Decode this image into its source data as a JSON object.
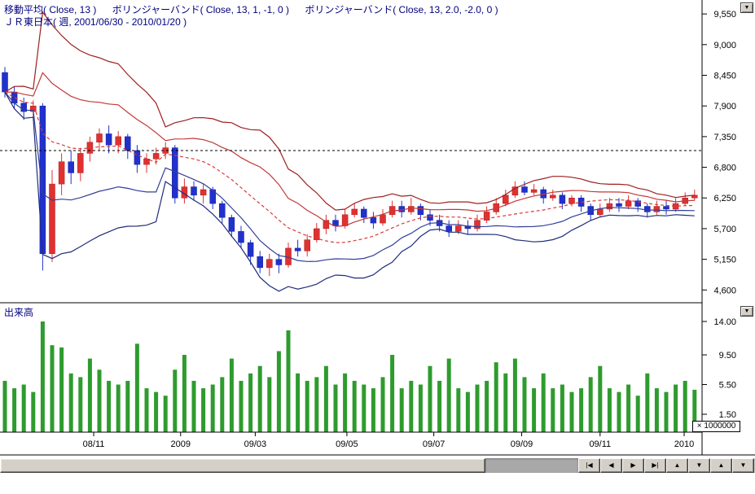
{
  "header": {
    "line1": [
      "移動平均( Close, 13 )",
      "ボリンジャーバンド( Close, 13, 1, -1, 0 )",
      "ボリンジャーバンド( Close, 13, 2.0, -2.0, 0 )"
    ],
    "line2": "ＪＲ東日本( 週, 2001/06/30 - 2010/01/20 )",
    "text_color": "#000080"
  },
  "volume_pane": {
    "label": "出来高",
    "multiplier": "× 1000000"
  },
  "controls": {
    "dropdown_glyph": "▼"
  },
  "scrollbar": {
    "buttons": [
      {
        "name": "jump-start",
        "glyph": "|◀"
      },
      {
        "name": "step-left",
        "glyph": "◀"
      },
      {
        "name": "step-right",
        "glyph": "▶"
      },
      {
        "name": "jump-end",
        "glyph": "▶|"
      },
      {
        "name": "zoom-in",
        "glyph": "▲"
      },
      {
        "name": "zoom-out",
        "glyph": "▼"
      },
      {
        "name": "pane-up",
        "glyph": "▲"
      },
      {
        "name": "pane-down",
        "glyph": "▼"
      }
    ]
  },
  "chart_data": {
    "type": "candlestick",
    "title": "ＪＲ東日本",
    "timeframe": "週",
    "date_range": "2001/06/30 - 2010/01/20",
    "indicators": [
      "移動平均( Close, 13 )",
      "ボリンジャーバンド( Close, 13, 1, -1, 0 )",
      "ボリンジャーバンド( Close, 13, 2.0, -2.0, 0 )"
    ],
    "reference_line": 7100,
    "price_axis": {
      "max": 9800,
      "min": 4371,
      "ticks": [
        9550,
        9000,
        8450,
        7900,
        7350,
        6800,
        6250,
        5700,
        5150,
        4600
      ],
      "tick_labels": [
        "9,550",
        "9,000",
        "8,450",
        "7,900",
        "7,350",
        "6,800",
        "6,250",
        "5,700",
        "5,150",
        "4,600"
      ]
    },
    "volume_axis": {
      "ticks": [
        14.0,
        9.5,
        5.5,
        1.5
      ],
      "tick_labels": [
        "14.00",
        "9.50",
        "5.50",
        "1.50"
      ],
      "multiplier": 1000000
    },
    "x_labels": [
      {
        "text": "08/11",
        "i": 9.4
      },
      {
        "text": "2009",
        "i": 18.6
      },
      {
        "text": "09/03",
        "i": 26.5
      },
      {
        "text": "09/05",
        "i": 36.2
      },
      {
        "text": "09/07",
        "i": 45.4
      },
      {
        "text": "09/09",
        "i": 54.7
      },
      {
        "text": "09/11",
        "i": 63.0
      },
      {
        "text": "2010",
        "i": 71.9
      }
    ],
    "series_colors": {
      "up": "#e03131",
      "up_border": "#a81f1f",
      "down": "#2131cd",
      "down_border": "#151f96",
      "volume": "#2e9b2e",
      "ma": "#d83a3a",
      "band1_upper": "#c43838",
      "band2_upper": "#9e1f1f",
      "band1_lower": "#32409a",
      "band2_lower": "#1f2d7a",
      "reference": "#000000",
      "axis": "#000000"
    },
    "candles": {
      "columns": [
        "open",
        "high",
        "low",
        "close",
        "volume_millions"
      ],
      "rows": [
        [
          8500,
          8600,
          8050,
          8150,
          6.0
        ],
        [
          8150,
          8250,
          7850,
          7950,
          5.0
        ],
        [
          7950,
          8050,
          7650,
          7800,
          5.5
        ],
        [
          7800,
          8000,
          7700,
          7900,
          4.5
        ],
        [
          7900,
          7950,
          4950,
          5250,
          14.0
        ],
        [
          5250,
          6750,
          5100,
          6500,
          10.8
        ],
        [
          6500,
          7050,
          6300,
          6900,
          10.5
        ],
        [
          6900,
          7100,
          6500,
          6700,
          7.0
        ],
        [
          6700,
          7150,
          6550,
          7050,
          6.5
        ],
        [
          7050,
          7350,
          6900,
          7250,
          9.0
        ],
        [
          7250,
          7500,
          7100,
          7400,
          7.5
        ],
        [
          7400,
          7550,
          7050,
          7200,
          6.0
        ],
        [
          7200,
          7450,
          7050,
          7350,
          5.5
        ],
        [
          7350,
          7400,
          6950,
          7100,
          6.0
        ],
        [
          7100,
          7200,
          6700,
          6850,
          11.0
        ],
        [
          6850,
          7050,
          6700,
          6950,
          5.0
        ],
        [
          6950,
          7150,
          6850,
          7050,
          4.5
        ],
        [
          7050,
          7250,
          6950,
          7150,
          4.0
        ],
        [
          7150,
          7200,
          6150,
          6250,
          7.5
        ],
        [
          6250,
          6600,
          6150,
          6450,
          9.5
        ],
        [
          6450,
          6550,
          6200,
          6300,
          6.0
        ],
        [
          6300,
          6500,
          6150,
          6400,
          5.0
        ],
        [
          6400,
          6450,
          6050,
          6150,
          5.5
        ],
        [
          6150,
          6200,
          5800,
          5900,
          6.5
        ],
        [
          5900,
          5950,
          5550,
          5650,
          9.0
        ],
        [
          5650,
          5750,
          5350,
          5450,
          6.0
        ],
        [
          5450,
          5500,
          5050,
          5200,
          7.0
        ],
        [
          5200,
          5300,
          4900,
          5000,
          8.0
        ],
        [
          5000,
          5250,
          4850,
          5150,
          6.5
        ],
        [
          5150,
          5250,
          4900,
          5050,
          10.0
        ],
        [
          5050,
          5450,
          5000,
          5350,
          12.8
        ],
        [
          5350,
          5500,
          5200,
          5300,
          7.0
        ],
        [
          5300,
          5600,
          5200,
          5500,
          6.0
        ],
        [
          5500,
          5800,
          5450,
          5700,
          6.5
        ],
        [
          5700,
          5950,
          5600,
          5850,
          8.0
        ],
        [
          5850,
          5950,
          5650,
          5750,
          5.5
        ],
        [
          5750,
          6050,
          5700,
          5950,
          7.0
        ],
        [
          5950,
          6150,
          5900,
          6050,
          6.0
        ],
        [
          6050,
          6100,
          5800,
          5900,
          5.5
        ],
        [
          5900,
          6000,
          5700,
          5800,
          5.0
        ],
        [
          5800,
          6050,
          5750,
          5950,
          6.5
        ],
        [
          5950,
          6200,
          5900,
          6100,
          9.5
        ],
        [
          6100,
          6200,
          5900,
          6000,
          5.0
        ],
        [
          6000,
          6250,
          5950,
          6100,
          6.0
        ],
        [
          6100,
          6150,
          5850,
          5950,
          5.5
        ],
        [
          5950,
          6050,
          5750,
          5850,
          8.0
        ],
        [
          5850,
          5950,
          5650,
          5750,
          6.0
        ],
        [
          5750,
          5850,
          5550,
          5650,
          9.0
        ],
        [
          5650,
          5850,
          5600,
          5750,
          5.0
        ],
        [
          5750,
          5850,
          5600,
          5700,
          4.5
        ],
        [
          5700,
          5950,
          5650,
          5850,
          5.5
        ],
        [
          5850,
          6100,
          5800,
          6000,
          6.0
        ],
        [
          6000,
          6250,
          5950,
          6150,
          8.5
        ],
        [
          6150,
          6400,
          6100,
          6300,
          7.0
        ],
        [
          6300,
          6550,
          6250,
          6450,
          9.0
        ],
        [
          6450,
          6550,
          6300,
          6350,
          6.5
        ],
        [
          6350,
          6500,
          6300,
          6400,
          5.0
        ],
        [
          6400,
          6450,
          6150,
          6250,
          7.0
        ],
        [
          6250,
          6400,
          6200,
          6300,
          5.0
        ],
        [
          6300,
          6350,
          6050,
          6150,
          5.5
        ],
        [
          6150,
          6300,
          6100,
          6250,
          4.5
        ],
        [
          6250,
          6300,
          6000,
          6100,
          5.0
        ],
        [
          6100,
          6150,
          5850,
          5950,
          6.5
        ],
        [
          5950,
          6150,
          5900,
          6050,
          8.0
        ],
        [
          6050,
          6250,
          6000,
          6150,
          5.0
        ],
        [
          6150,
          6250,
          6000,
          6100,
          4.5
        ],
        [
          6100,
          6300,
          6050,
          6200,
          5.5
        ],
        [
          6200,
          6250,
          6000,
          6100,
          4.0
        ],
        [
          6100,
          6150,
          5900,
          6000,
          7.0
        ],
        [
          6000,
          6200,
          5950,
          6100,
          5.0
        ],
        [
          6100,
          6200,
          5950,
          6050,
          4.5
        ],
        [
          6050,
          6250,
          6000,
          6150,
          5.5
        ],
        [
          6150,
          6350,
          6100,
          6250,
          6.0
        ],
        [
          6250,
          6400,
          6200,
          6300,
          4.8
        ]
      ]
    }
  }
}
